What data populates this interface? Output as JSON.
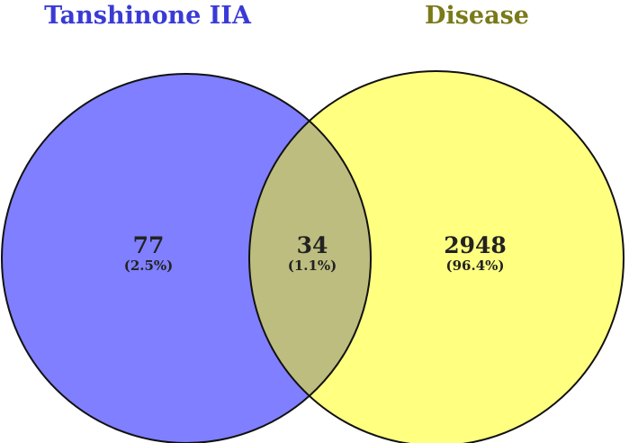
{
  "sets": [
    {
      "name": "Tanshinone IIA",
      "color": "#7f7fff",
      "title_color": "#3a3ad6"
    },
    {
      "name": "Disease",
      "color": "#ffff80",
      "title_color": "#7a7a1a"
    }
  ],
  "overlap_color": "#bdbd80",
  "outline_color": "#111111",
  "regions": {
    "left_only": {
      "count": "77",
      "percent": "(2.5%)"
    },
    "both": {
      "count": "34",
      "percent": "(1.1%)"
    },
    "right_only": {
      "count": "2948",
      "percent": "(96.4%)"
    }
  }
}
